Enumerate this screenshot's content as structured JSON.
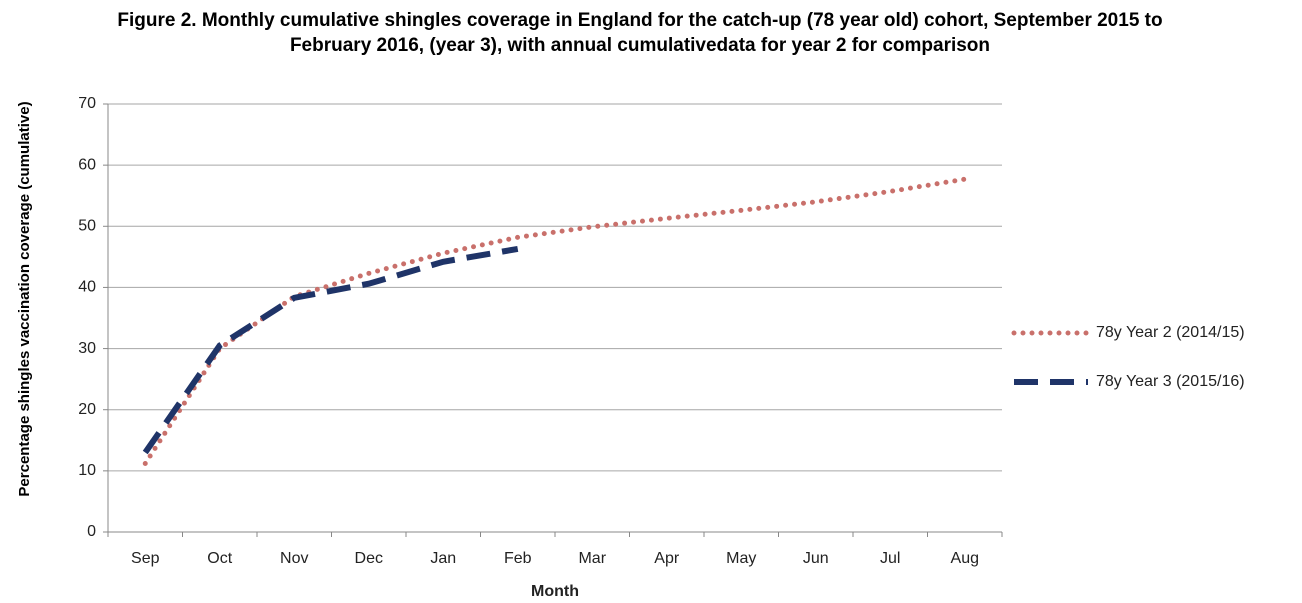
{
  "chart_data": {
    "type": "line",
    "title": "Figure 2. Monthly cumulative shingles coverage in England  for the catch-up (78 year old) cohort, September 2015 to February 2016, (year 3), with annual cumulativedata for year 2 for comparison",
    "x_label": "Month",
    "y_label": "Percentage shingles vaccination coverage (cumulative)",
    "categories": [
      "Sep",
      "Oct",
      "Nov",
      "Dec",
      "Jan",
      "Feb",
      "Mar",
      "Apr",
      "May",
      "Jun",
      "Jul",
      "Aug"
    ],
    "series": [
      {
        "name": "78y Year 2 (2014/15)",
        "color": "#c9706b",
        "style": "dotted",
        "values": [
          11.2,
          30,
          38.5,
          42.3,
          45.6,
          48.2,
          49.9,
          51.3,
          52.6,
          54.0,
          55.7,
          57.7
        ]
      },
      {
        "name": "78y Year 3 (2015/16)",
        "color": "#1f3468",
        "style": "dashed",
        "values": [
          13,
          30.5,
          38.3,
          40.6,
          44.2,
          46.3,
          null,
          null,
          null,
          null,
          null,
          null
        ]
      }
    ],
    "ylim": [
      0,
      70
    ],
    "yticks": [
      0,
      10,
      20,
      30,
      40,
      50,
      60,
      70
    ],
    "grid": true,
    "legend": "right"
  }
}
